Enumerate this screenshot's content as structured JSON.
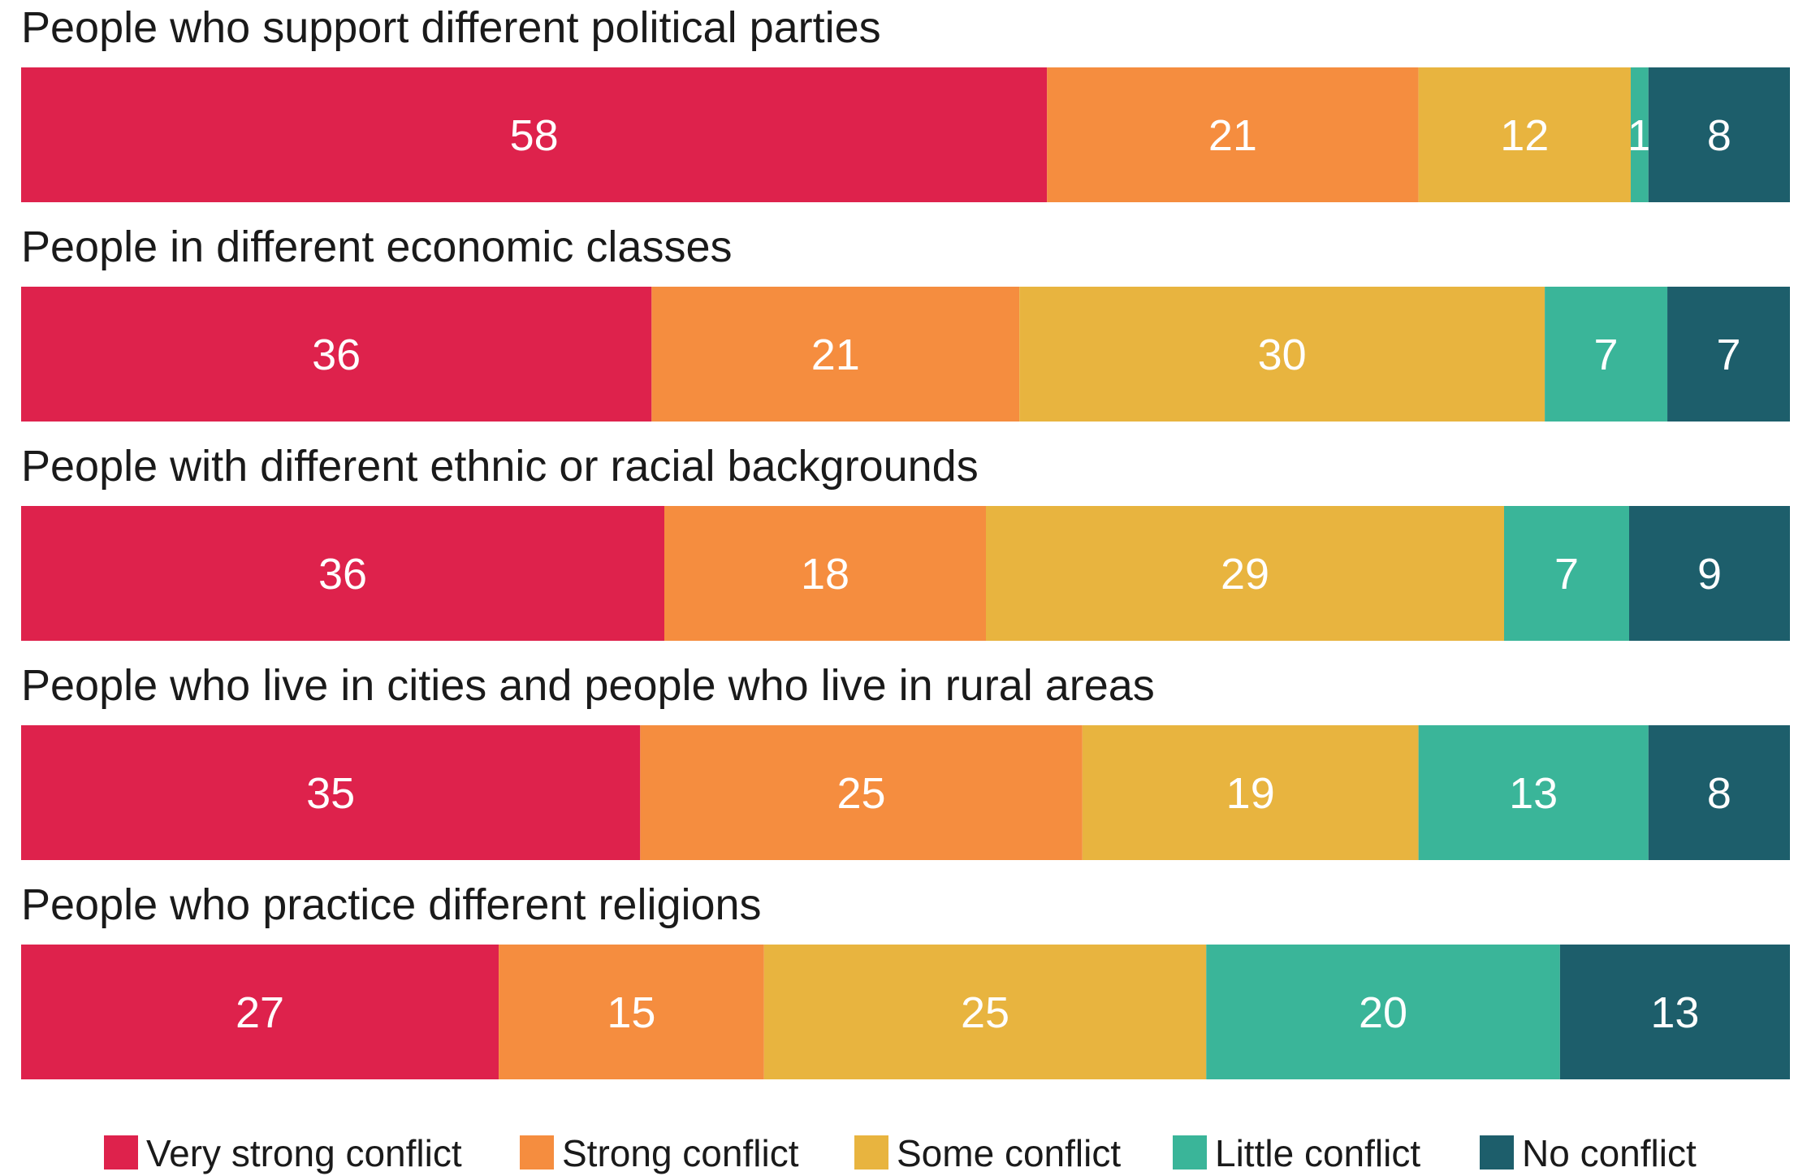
{
  "chart_data": {
    "type": "bar",
    "orientation": "horizontal",
    "stacked": true,
    "title": "",
    "xlabel": "",
    "ylabel": "",
    "categories": [
      "People who support different political parties",
      "People in different economic classes",
      "People with different ethnic or racial backgrounds",
      "People who live in cities and people who live in rural areas",
      "People who practice different religions"
    ],
    "series": [
      {
        "name": "Very strong conflict",
        "color": "#de224c",
        "values": [
          58,
          36,
          36,
          35,
          27
        ]
      },
      {
        "name": "Strong conflict",
        "color": "#f58d3f",
        "values": [
          21,
          21,
          18,
          25,
          15
        ]
      },
      {
        "name": "Some conflict",
        "color": "#e8b43f",
        "values": [
          12,
          30,
          29,
          19,
          25
        ]
      },
      {
        "name": "Little conflict",
        "color": "#3ab599",
        "values": [
          1,
          7,
          7,
          13,
          20
        ]
      },
      {
        "name": "No conflict",
        "color": "#1d5e6b",
        "values": [
          8,
          7,
          9,
          8,
          13
        ]
      }
    ],
    "grid": false,
    "legend": "bottom"
  }
}
